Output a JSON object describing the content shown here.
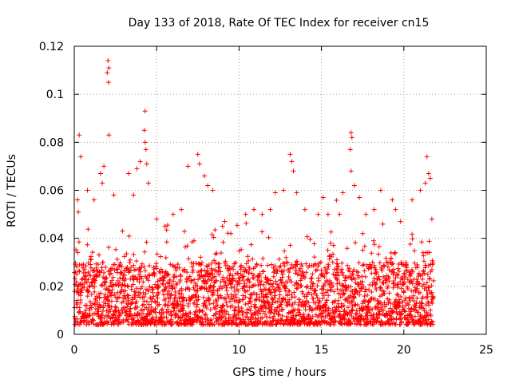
{
  "chart_data": {
    "type": "scatter",
    "title": "Day 133 of 2018, Rate Of TEC Index for receiver cn15",
    "xlabel": "GPS time / hours",
    "ylabel": "ROTI / TECUs",
    "xlim": [
      0,
      25
    ],
    "ylim": [
      0,
      0.12
    ],
    "xticks": [
      0,
      5,
      10,
      15,
      20,
      25
    ],
    "xtick_labels": [
      "0",
      "5",
      "10",
      "15",
      "20",
      "25"
    ],
    "yticks": [
      0,
      0.02,
      0.04,
      0.06,
      0.08,
      0.1,
      0.12
    ],
    "ytick_labels": [
      "0",
      "0.02",
      "0.04",
      "0.06",
      "0.08",
      "0.1",
      "0.12"
    ],
    "grid": true,
    "marker": "plus",
    "color": "#ff0000",
    "series": [
      {
        "name": "ROTI",
        "x_range": [
          0,
          21.8
        ],
        "baseline_range": [
          0.004,
          0.03
        ],
        "notable_points": [
          {
            "x": 0.3,
            "y": 0.083
          },
          {
            "x": 0.4,
            "y": 0.074
          },
          {
            "x": 0.2,
            "y": 0.056
          },
          {
            "x": 0.8,
            "y": 0.06
          },
          {
            "x": 1.2,
            "y": 0.056
          },
          {
            "x": 1.6,
            "y": 0.067
          },
          {
            "x": 1.7,
            "y": 0.063
          },
          {
            "x": 1.8,
            "y": 0.07
          },
          {
            "x": 2.05,
            "y": 0.114
          },
          {
            "x": 2.1,
            "y": 0.111
          },
          {
            "x": 2.0,
            "y": 0.109
          },
          {
            "x": 2.08,
            "y": 0.105
          },
          {
            "x": 2.1,
            "y": 0.083
          },
          {
            "x": 2.4,
            "y": 0.058
          },
          {
            "x": 3.3,
            "y": 0.067
          },
          {
            "x": 3.6,
            "y": 0.058
          },
          {
            "x": 3.8,
            "y": 0.069
          },
          {
            "x": 4.0,
            "y": 0.072
          },
          {
            "x": 4.3,
            "y": 0.093
          },
          {
            "x": 4.25,
            "y": 0.085
          },
          {
            "x": 4.3,
            "y": 0.08
          },
          {
            "x": 4.35,
            "y": 0.077
          },
          {
            "x": 4.4,
            "y": 0.071
          },
          {
            "x": 4.5,
            "y": 0.063
          },
          {
            "x": 5.0,
            "y": 0.048
          },
          {
            "x": 5.5,
            "y": 0.045
          },
          {
            "x": 6.0,
            "y": 0.05
          },
          {
            "x": 6.5,
            "y": 0.052
          },
          {
            "x": 6.9,
            "y": 0.07
          },
          {
            "x": 7.5,
            "y": 0.075
          },
          {
            "x": 7.6,
            "y": 0.071
          },
          {
            "x": 7.9,
            "y": 0.066
          },
          {
            "x": 8.1,
            "y": 0.062
          },
          {
            "x": 8.4,
            "y": 0.06
          },
          {
            "x": 9.0,
            "y": 0.045
          },
          {
            "x": 9.5,
            "y": 0.042
          },
          {
            "x": 10.4,
            "y": 0.05
          },
          {
            "x": 10.9,
            "y": 0.052
          },
          {
            "x": 11.4,
            "y": 0.05
          },
          {
            "x": 11.9,
            "y": 0.052
          },
          {
            "x": 12.2,
            "y": 0.059
          },
          {
            "x": 12.7,
            "y": 0.06
          },
          {
            "x": 13.1,
            "y": 0.075
          },
          {
            "x": 13.2,
            "y": 0.072
          },
          {
            "x": 13.3,
            "y": 0.068
          },
          {
            "x": 13.5,
            "y": 0.059
          },
          {
            "x": 14.0,
            "y": 0.052
          },
          {
            "x": 14.8,
            "y": 0.05
          },
          {
            "x": 15.1,
            "y": 0.057
          },
          {
            "x": 15.4,
            "y": 0.05
          },
          {
            "x": 16.1,
            "y": 0.05
          },
          {
            "x": 16.3,
            "y": 0.059
          },
          {
            "x": 16.8,
            "y": 0.084
          },
          {
            "x": 16.85,
            "y": 0.082
          },
          {
            "x": 16.75,
            "y": 0.077
          },
          {
            "x": 16.8,
            "y": 0.068
          },
          {
            "x": 17.0,
            "y": 0.062
          },
          {
            "x": 17.3,
            "y": 0.057
          },
          {
            "x": 17.7,
            "y": 0.05
          },
          {
            "x": 18.2,
            "y": 0.052
          },
          {
            "x": 18.6,
            "y": 0.06
          },
          {
            "x": 19.3,
            "y": 0.056
          },
          {
            "x": 19.5,
            "y": 0.052
          },
          {
            "x": 19.8,
            "y": 0.047
          },
          {
            "x": 20.5,
            "y": 0.056
          },
          {
            "x": 21.0,
            "y": 0.06
          },
          {
            "x": 21.3,
            "y": 0.063
          },
          {
            "x": 21.4,
            "y": 0.074
          },
          {
            "x": 21.5,
            "y": 0.067
          },
          {
            "x": 21.6,
            "y": 0.065
          },
          {
            "x": 21.7,
            "y": 0.048
          }
        ]
      }
    ]
  }
}
